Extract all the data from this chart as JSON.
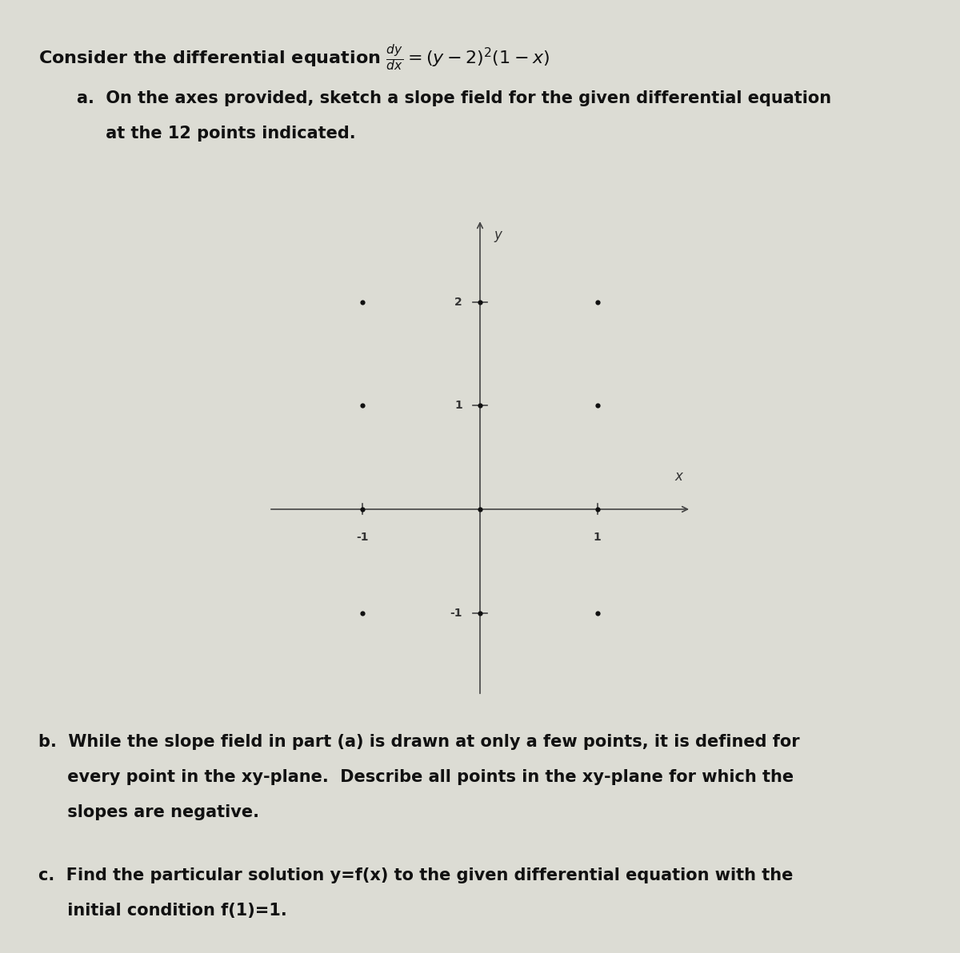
{
  "bg_color": "#dcdcd4",
  "axis_color": "#444444",
  "text_color": "#111111",
  "dot_color": "#111111",
  "points": [
    [
      -1,
      2
    ],
    [
      0,
      2
    ],
    [
      1,
      2
    ],
    [
      -1,
      1
    ],
    [
      0,
      1
    ],
    [
      1,
      1
    ],
    [
      -1,
      0
    ],
    [
      0,
      0
    ],
    [
      1,
      0
    ],
    [
      -1,
      -1
    ],
    [
      0,
      -1
    ],
    [
      1,
      -1
    ]
  ],
  "xlim": [
    -1.8,
    1.8
  ],
  "ylim": [
    -1.8,
    2.8
  ],
  "title_text": "Consider the differential equation ",
  "title_math": "$\\frac{dy}{dx} = (y-2)^2(1-x)$",
  "part_a_text": "a.  On the axes provided, sketch a slope field for the given differential equation\n     at the 12 points indicated.",
  "part_b_text": "b.  While the slope field in part (a) is drawn at only a few points, it is defined for\n     every point in the xy-plane.  Describe all points in the xy-plane for which the\n     slopes are negative.",
  "part_c_text": "c.  Find the particular solution y=f(x) to the given differential equation with the\n     initial condition f(1)=1.",
  "title_fontsize": 16,
  "body_fontsize": 15,
  "tick_fontsize": 10,
  "axis_label_fontsize": 12
}
